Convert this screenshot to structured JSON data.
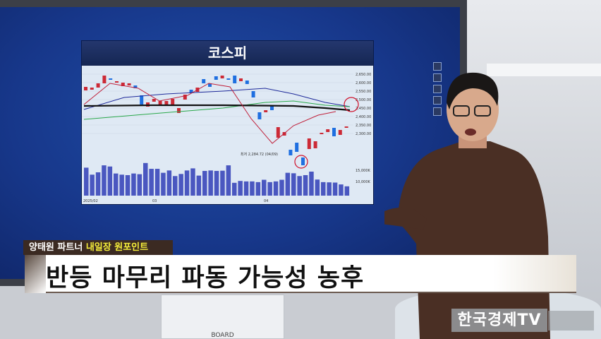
{
  "chart_panel": {
    "title": "코스피",
    "low_label": "최저 2,284.72 (04/09)",
    "volume_ticks": [
      "15,000K",
      "10,000K"
    ],
    "price_ticks": [
      "2,650.00",
      "2,600.00",
      "2,550.00",
      "2,500.00",
      "2,450.00",
      "2,400.00",
      "2,350.00",
      "2,300.00"
    ],
    "date_labels": [
      "2025/02",
      "03",
      "04"
    ],
    "colors": {
      "up": "#cc2a36",
      "down": "#1f6fe0"
    }
  },
  "caption": {
    "presenter": "양태원 파트너",
    "segment": "내일장 원포인트"
  },
  "headline": "반등 마무리 파동 가능성 농후",
  "broadcaster_logo": "한국경제TV",
  "desk_label": "BOARD"
}
